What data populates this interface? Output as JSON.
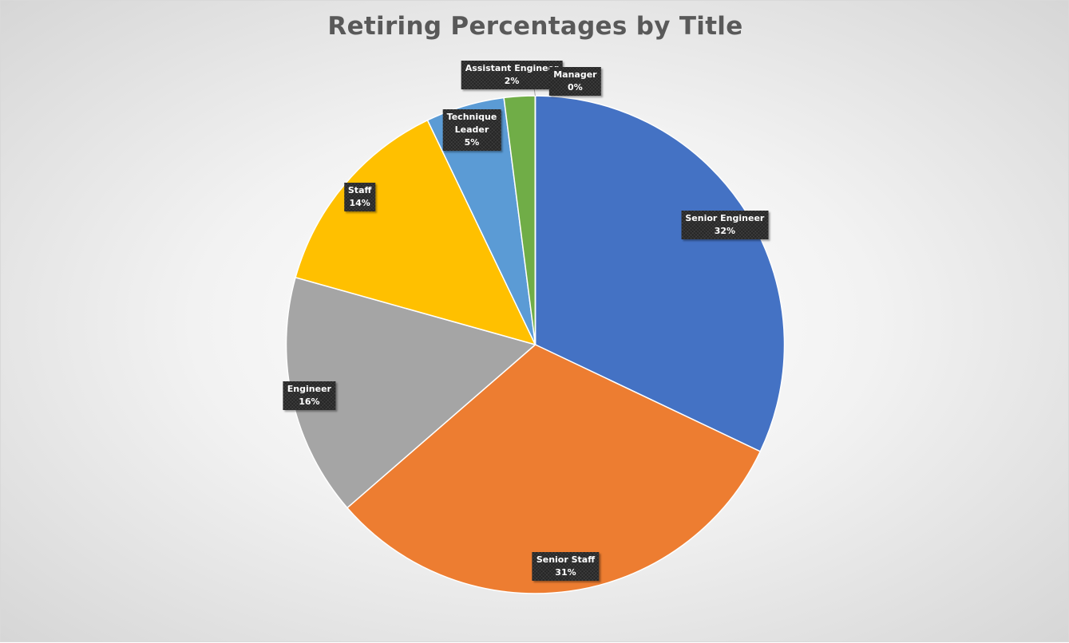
{
  "chart_data": {
    "type": "pie",
    "title": "Retiring Percentages by Title",
    "slices": [
      {
        "label": "Senior Engineer",
        "pct_text": "32%",
        "value": 32.0,
        "color": "#4472C4"
      },
      {
        "label": "Senior Staff",
        "pct_text": "31%",
        "value": 31.5,
        "color": "#ED7D31"
      },
      {
        "label": "Engineer",
        "pct_text": "16%",
        "value": 15.7,
        "color": "#A5A5A5"
      },
      {
        "label": "Staff",
        "pct_text": "14%",
        "value": 13.5,
        "color": "#FFC000"
      },
      {
        "label": "Technique Leader",
        "pct_text": "5%",
        "value": 5.1,
        "color": "#5B9BD5"
      },
      {
        "label": "Assistant Engineer",
        "pct_text": "2%",
        "value": 2.0,
        "color": "#70AD47"
      },
      {
        "label": "Manager",
        "pct_text": "0%",
        "value": 0.01,
        "color": "#264478"
      }
    ],
    "legend": "none",
    "label_style": "dark patterned callouts showing category name and percentage"
  }
}
